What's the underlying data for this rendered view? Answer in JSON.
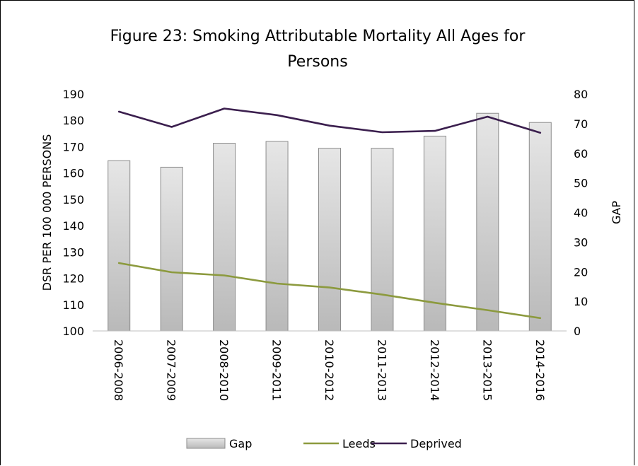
{
  "chart_data": {
    "type": "bar+line",
    "title_lines": [
      "Figure 23: Smoking Attributable Mortality All Ages for",
      "Persons"
    ],
    "categories": [
      "2006-2008",
      "2007-2009",
      "2008-2010",
      "2009-2011",
      "2010-2012",
      "2011-2013",
      "2012-2014",
      "2013-2015",
      "2014-2016"
    ],
    "left_axis": {
      "label": "DSR PER 100 000 PERSONS",
      "min": 100,
      "max": 190,
      "step": 10,
      "ticks": [
        "100",
        "110",
        "120",
        "130",
        "140",
        "150",
        "160",
        "170",
        "180",
        "190"
      ]
    },
    "right_axis": {
      "label": "GAP",
      "min": 0,
      "max": 80,
      "step": 10,
      "ticks": [
        "0",
        "10",
        "20",
        "30",
        "40",
        "50",
        "60",
        "70",
        "80"
      ]
    },
    "series": [
      {
        "name": "Gap",
        "kind": "bar",
        "axis": "right",
        "color": "#d0d0d0",
        "values": [
          57.5,
          55.3,
          63.4,
          64.0,
          61.7,
          61.7,
          65.8,
          73.5,
          70.4
        ]
      },
      {
        "name": "Leeds",
        "kind": "line",
        "axis": "left",
        "color": "#8c9a3e",
        "values": [
          125.8,
          122.3,
          121.1,
          118.0,
          116.5,
          113.8,
          110.7,
          107.9,
          104.9
        ]
      },
      {
        "name": "Deprived",
        "kind": "line",
        "axis": "left",
        "color": "#3b1f4e",
        "values": [
          183.3,
          177.5,
          184.5,
          182.0,
          178.0,
          175.5,
          176.0,
          181.4,
          175.3
        ]
      }
    ],
    "legend_position": "bottom",
    "grid": false
  }
}
